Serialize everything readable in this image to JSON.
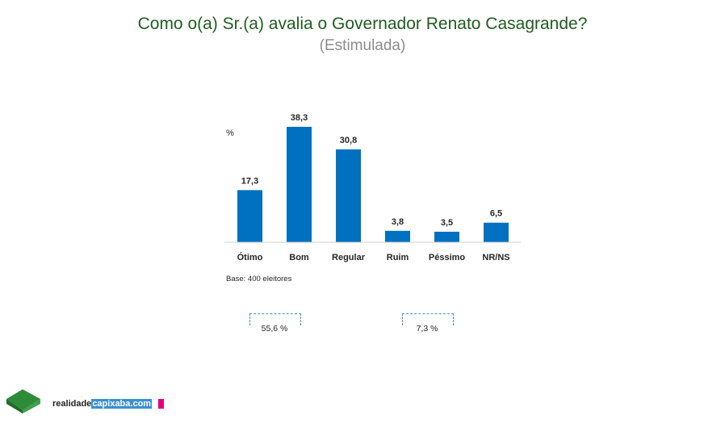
{
  "chart_data": {
    "type": "bar",
    "title": "Como o(a) Sr.(a) avalia o Governador Renato Casagrande?",
    "subtitle": "(Estimulada)",
    "ylabel": "%",
    "categories": [
      "Ótimo",
      "Bom",
      "Regular",
      "Ruim",
      "Péssimo",
      "NR/NS"
    ],
    "values": [
      17.3,
      38.3,
      30.8,
      3.8,
      3.5,
      6.5
    ],
    "value_labels": [
      "17,3",
      "38,3",
      "30,8",
      "3,8",
      "3,5",
      "6,5"
    ],
    "ylim": [
      0,
      38.3
    ],
    "color": "#0070c0",
    "base_note": "Base: 400 eleitores",
    "groups": [
      {
        "label": "55,6 %",
        "categories": [
          "Ótimo",
          "Bom"
        ]
      },
      {
        "label": "7,3 %",
        "categories": [
          "Ruim",
          "Péssimo"
        ]
      }
    ]
  },
  "footer": {
    "brand_prefix": "realidade",
    "brand_highlight": "capixaba.com"
  }
}
